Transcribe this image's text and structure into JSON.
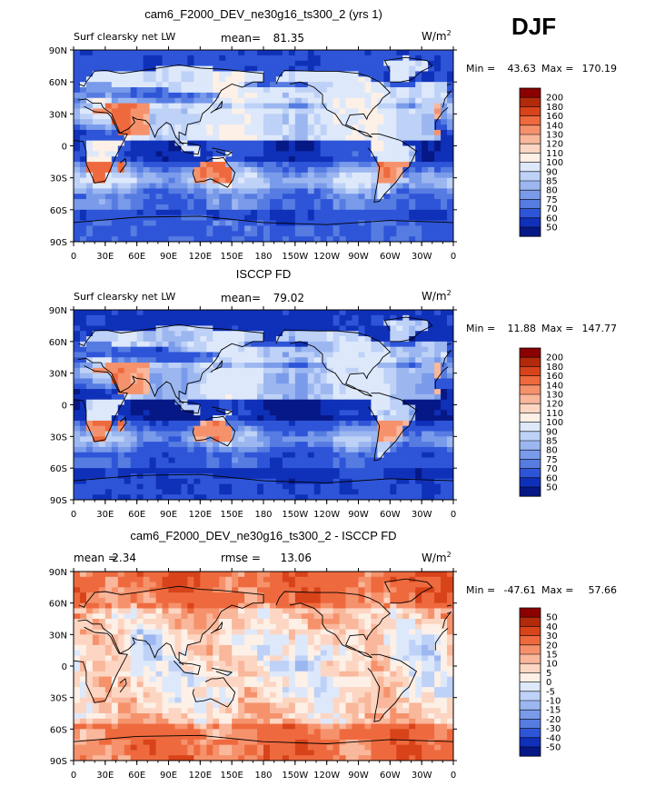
{
  "season": "DJF",
  "lat_ticks": [
    "90N",
    "60N",
    "30N",
    "0",
    "30S",
    "60S",
    "90S"
  ],
  "lon_ticks": [
    "0",
    "30E",
    "60E",
    "90E",
    "120E",
    "150E",
    "180",
    "150W",
    "120W",
    "90W",
    "60W",
    "30W",
    "0"
  ],
  "abs_levels": [
    "200",
    "180",
    "160",
    "140",
    "130",
    "120",
    "110",
    "100",
    "90",
    "85",
    "80",
    "75",
    "70",
    "60",
    "50"
  ],
  "abs_colors": [
    "#8b0000",
    "#b22a0a",
    "#d8431a",
    "#ee6a3e",
    "#f5926c",
    "#f9b79b",
    "#fcd6c3",
    "#fdf0e6",
    "#dde8fb",
    "#bed1f7",
    "#9cb7f0",
    "#7a9bea",
    "#567ce2",
    "#2e55d8",
    "#0f30b8",
    "#061886"
  ],
  "diff_levels": [
    "50",
    "40",
    "30",
    "20",
    "15",
    "10",
    "5",
    "0",
    "-5",
    "-10",
    "-15",
    "-20",
    "-30",
    "-40",
    "-50"
  ],
  "diff_colors": [
    "#8b0000",
    "#b22a0a",
    "#d8431a",
    "#ee6a3e",
    "#f5926c",
    "#f9b79b",
    "#fcd6c3",
    "#fdf0e6",
    "#dde8fb",
    "#bed1f7",
    "#9cb7f0",
    "#7a9bea",
    "#567ce2",
    "#2e55d8",
    "#0f30b8",
    "#061886"
  ],
  "chart_data": [
    {
      "type": "heatmap",
      "title": "cam6_F2000_DEV_ne30g16_ts300_2 (yrs 1)",
      "left_label": "Surf clearsky net LW",
      "stats": [
        {
          "label": "mean=",
          "value": "81.35"
        }
      ],
      "units": "W/m",
      "units_sup": "2",
      "min_label": "Min =",
      "min_value": "43.63",
      "max_label": "Max =",
      "max_value": "170.19",
      "field": "model",
      "xlim": [
        0,
        360
      ],
      "ylim": [
        -90,
        90
      ]
    },
    {
      "type": "heatmap",
      "title": "ISCCP FD",
      "left_label": "Surf clearsky net LW",
      "stats": [
        {
          "label": "mean=",
          "value": "79.02"
        }
      ],
      "units": "W/m",
      "units_sup": "2",
      "min_label": "Min =",
      "min_value": "11.88",
      "max_label": "Max =",
      "max_value": "147.77",
      "field": "obs",
      "xlim": [
        0,
        360
      ],
      "ylim": [
        -90,
        90
      ]
    },
    {
      "type": "heatmap",
      "title": "cam6_F2000_DEV_ne30g16_ts300_2 - ISCCP FD",
      "left_label": "",
      "stats": [
        {
          "label": "mean =",
          "value": "2.34"
        },
        {
          "label": "rmse =",
          "value": "13.06"
        }
      ],
      "units": "W/m",
      "units_sup": "2",
      "min_label": "Min =",
      "min_value": "-47.61",
      "max_label": "Max =",
      "max_value": "57.66",
      "field": "diff",
      "xlim": [
        0,
        360
      ],
      "ylim": [
        -90,
        90
      ]
    }
  ]
}
